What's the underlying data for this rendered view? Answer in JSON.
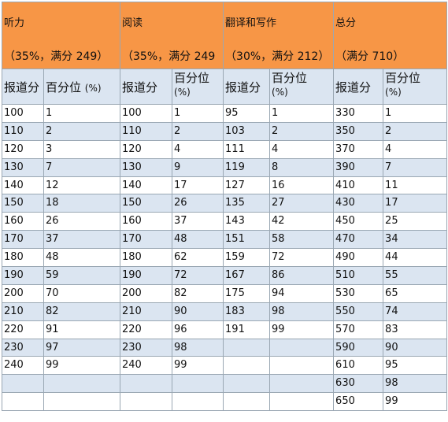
{
  "sections": [
    {
      "title": "听力",
      "subtitle": "（35%，满分 249）"
    },
    {
      "title": "阅读",
      "subtitle": "（35%，满分 249"
    },
    {
      "title": "翻译和写作",
      "subtitle": "（30%，满分 212）"
    },
    {
      "title": "总分",
      "subtitle": "（满分 710）"
    }
  ],
  "subheaders": {
    "score_label": "报道分",
    "percentile_label": "百分位",
    "percent_unit": "(%)"
  },
  "rows": [
    [
      "100",
      "1",
      "100",
      "1",
      "95",
      "1",
      "330",
      "1"
    ],
    [
      "110",
      "2",
      "110",
      "2",
      "103",
      "2",
      "350",
      "2"
    ],
    [
      "120",
      "3",
      "120",
      "4",
      "111",
      "4",
      "370",
      "4"
    ],
    [
      "130",
      "7",
      "130",
      "9",
      "119",
      "8",
      "390",
      "7"
    ],
    [
      "140",
      "12",
      "140",
      "17",
      "127",
      "16",
      "410",
      "11"
    ],
    [
      "150",
      "18",
      "150",
      "26",
      "135",
      "27",
      "430",
      "17"
    ],
    [
      "160",
      "26",
      "160",
      "37",
      "143",
      "42",
      "450",
      "25"
    ],
    [
      "170",
      "37",
      "170",
      "48",
      "151",
      "58",
      "470",
      "34"
    ],
    [
      "180",
      "48",
      "180",
      "62",
      "159",
      "72",
      "490",
      "44"
    ],
    [
      "190",
      "59",
      "190",
      "72",
      "167",
      "86",
      "510",
      "55"
    ],
    [
      "200",
      "70",
      "200",
      "82",
      "175",
      "94",
      "530",
      "65"
    ],
    [
      "210",
      "82",
      "210",
      "90",
      "183",
      "98",
      "550",
      "74"
    ],
    [
      "220",
      "91",
      "220",
      "96",
      "191",
      "99",
      "570",
      "83"
    ],
    [
      "230",
      "97",
      "230",
      "98",
      "",
      "",
      "590",
      "90"
    ],
    [
      "240",
      "99",
      "240",
      "99",
      "",
      "",
      "610",
      "95"
    ],
    [
      "",
      "",
      "",
      "",
      "",
      "",
      "630",
      "98"
    ],
    [
      "",
      "",
      "",
      "",
      "",
      "",
      "650",
      "99"
    ]
  ],
  "colors": {
    "header_bg": "#f79646",
    "header_text": "#ffffff",
    "band_bg": "#dbe5f1",
    "border": "#9aa7b3"
  }
}
